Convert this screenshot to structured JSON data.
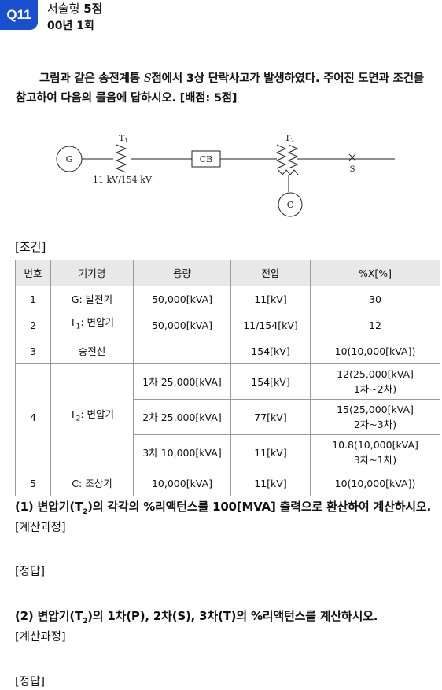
{
  "header": {
    "badge": "Q11",
    "type": "서술형",
    "points": "5점",
    "exam": "00년 1회"
  },
  "question": {
    "part1": "그림과 같은 송전계통 ",
    "point_symbol": "S",
    "part2": "점에서 3상 단락사고가 발생하였다. 주어진 도면과 조건을 참고하여 다음의 물음에 답하시오. [배점: 5점]"
  },
  "diagram": {
    "generator": "G",
    "t1_label": "T",
    "t1_sub": "1",
    "t1_rating": "11 kV/154 kV",
    "breaker": "CB",
    "t2_label": "T",
    "t2_sub": "2",
    "fault": "S",
    "condenser": "C"
  },
  "conditions_title": "[조건]",
  "table": {
    "headers": [
      "번호",
      "기기명",
      "용량",
      "전압",
      "%X[%]"
    ],
    "rows": [
      {
        "no": "1",
        "name": "G: 발전기",
        "cap": "50,000[kVA]",
        "volt": "11[kV]",
        "x": "30"
      },
      {
        "no": "2",
        "name_pre": "T",
        "name_sub": "1",
        "name_post": ": 변압기",
        "cap": "50,000[kVA]",
        "volt": "11/154[kV]",
        "x": "12"
      },
      {
        "no": "3",
        "name": "송전선",
        "cap": "",
        "volt": "154[kV]",
        "x": "10(10,000[kVA])"
      },
      {
        "no": "4",
        "name_pre": "T",
        "name_sub": "2",
        "name_post": ": 변압기",
        "sub": [
          {
            "cap": "1차 25,000[kVA]",
            "volt": "154[kV]",
            "x1": "12(25,000[kVA]",
            "x2": "1차~2차)"
          },
          {
            "cap": "2차 25,000[kVA]",
            "volt": "77[kV]",
            "x1": "15(25,000[kVA]",
            "x2": "2차~3차)"
          },
          {
            "cap": "3차 10,000[kVA]",
            "volt": "11[kV]",
            "x1": "10.8(10,000[kVA]",
            "x2": "3차~1차)"
          }
        ]
      },
      {
        "no": "5",
        "name": "C: 조상기",
        "cap": "10,000[kVA]",
        "volt": "11[kV]",
        "x": "10(10,000[kVA])"
      }
    ]
  },
  "q1": {
    "pre": "(1) 변압기(T",
    "sub": "2",
    "post": ")의 각각의 %리액턴스를 100[MVA] 출력으로 환산하여 계산하시오.",
    "calc": "[계산과정]",
    "answer": "[정답]"
  },
  "q2": {
    "pre": "(2) 변압기(T",
    "sub": "2",
    "post": ")의 1차(P), 2차(S), 3차(T)의 %리액턴스를 계산하시오.",
    "calc": "[계산과정]",
    "answer": "[정답]"
  }
}
